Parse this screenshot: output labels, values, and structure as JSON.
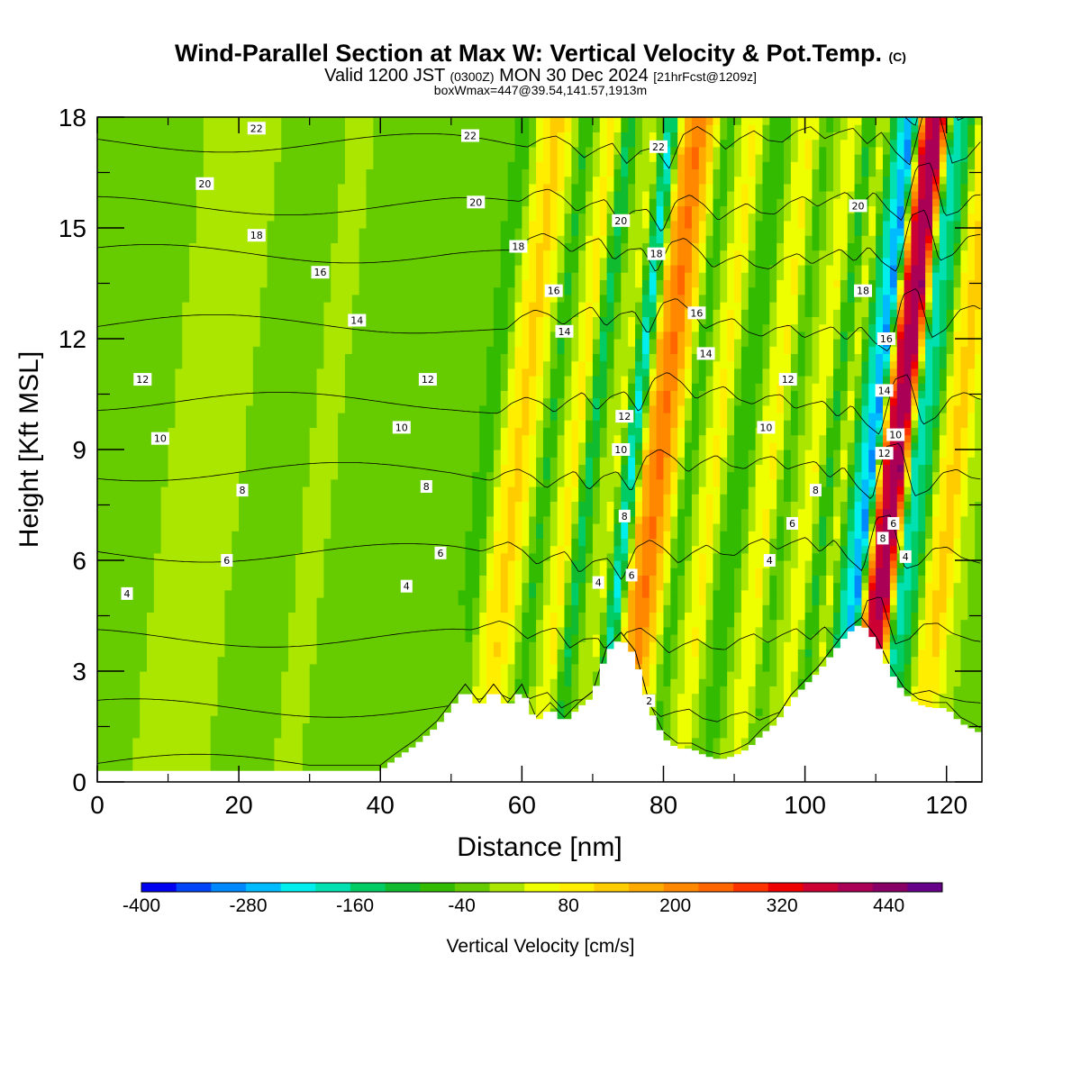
{
  "header": {
    "title": "Wind-Parallel Section at Max W: Vertical Velocity & Pot.Temp.",
    "title_mark": "(C)",
    "valid_prefix": "Valid 1200 JST",
    "valid_zulu": "(0300Z)",
    "valid_date": "MON 30 Dec 2024",
    "fcst": "[21hrFcst@1209z]",
    "boxwmax": "boxWmax=447@39.54,141.57,1913m"
  },
  "chart_data": {
    "type": "heatmap",
    "title": "Wind-Parallel Section at Max W: Vertical Velocity & Pot.Temp.",
    "xlabel": "Distance [nm]",
    "ylabel": "Height [Kft MSL]",
    "xlim": [
      0,
      125
    ],
    "ylim": [
      0,
      18
    ],
    "x_ticks": [
      "0",
      "20",
      "40",
      "60",
      "80",
      "100",
      "120"
    ],
    "y_ticks": [
      "0",
      "3",
      "6",
      "9",
      "12",
      "15",
      "18"
    ],
    "terrain": {
      "x": [
        0,
        40,
        42,
        45,
        48,
        52,
        54,
        56,
        58,
        60,
        62,
        64,
        66,
        68,
        70,
        72,
        74,
        76,
        78,
        80,
        82,
        84,
        86,
        88,
        90,
        92,
        94,
        96,
        98,
        100,
        102,
        104,
        106,
        108,
        110,
        112,
        114,
        116,
        118,
        120,
        122,
        125
      ],
      "y": [
        0.3,
        0.3,
        0.6,
        1.0,
        1.5,
        2.5,
        2.0,
        2.5,
        2.0,
        2.5,
        1.6,
        2.0,
        1.6,
        2.0,
        2.3,
        3.5,
        3.9,
        3.4,
        2.0,
        1.2,
        0.9,
        0.9,
        0.7,
        0.6,
        0.7,
        0.9,
        1.3,
        1.6,
        2.2,
        2.6,
        3.0,
        3.5,
        4.0,
        4.3,
        3.8,
        3.0,
        2.4,
        2.1,
        2.0,
        2.0,
        1.6,
        1.3
      ]
    },
    "vertical_velocity_field": {
      "description_units": "cm/s",
      "x": [
        0,
        5,
        10,
        15,
        20,
        25,
        30,
        35,
        40,
        45,
        50,
        54,
        56,
        58,
        60,
        62,
        64,
        66,
        68,
        70,
        72,
        74,
        76,
        78,
        80,
        82,
        84,
        86,
        88,
        90,
        92,
        94,
        96,
        98,
        100,
        102,
        104,
        106,
        108,
        110,
        112,
        114,
        116,
        118,
        120,
        122,
        125
      ],
      "w": [
        -30,
        -10,
        5,
        20,
        -5,
        -30,
        15,
        -20,
        -30,
        -25,
        -35,
        -45,
        80,
        140,
        60,
        -90,
        30,
        110,
        -140,
        10,
        50,
        -230,
        170,
        250,
        120,
        -80,
        30,
        100,
        -40,
        -80,
        40,
        90,
        -60,
        20,
        80,
        -100,
        60,
        -160,
        -300,
        380,
        440,
        -200,
        -120,
        100,
        140,
        30,
        -30
      ],
      "tilt_nm_per_kft": 0.6
    },
    "potential_temperature": {
      "units": "C",
      "levels": [
        2,
        4,
        6,
        8,
        10,
        12,
        14,
        16,
        18,
        20,
        22
      ],
      "base_height_kft": [
        0.5,
        2.0,
        3.9,
        6.2,
        8.4,
        10.3,
        12.4,
        14.3,
        15.6,
        17.3,
        18.6
      ],
      "labels": [
        {
          "text": "22",
          "x": 22.5,
          "y": 17.7
        },
        {
          "text": "22",
          "x": 52.7,
          "y": 17.5
        },
        {
          "text": "22",
          "x": 79.3,
          "y": 17.2
        },
        {
          "text": "20",
          "x": 15.2,
          "y": 16.2
        },
        {
          "text": "20",
          "x": 53.5,
          "y": 15.7
        },
        {
          "text": "20",
          "x": 74.0,
          "y": 15.2
        },
        {
          "text": "20",
          "x": 107.5,
          "y": 15.6
        },
        {
          "text": "18",
          "x": 22.5,
          "y": 14.8
        },
        {
          "text": "18",
          "x": 59.5,
          "y": 14.5
        },
        {
          "text": "18",
          "x": 79.0,
          "y": 14.3
        },
        {
          "text": "18",
          "x": 108.2,
          "y": 13.3
        },
        {
          "text": "16",
          "x": 31.5,
          "y": 13.8
        },
        {
          "text": "16",
          "x": 64.5,
          "y": 13.3
        },
        {
          "text": "16",
          "x": 84.7,
          "y": 12.7
        },
        {
          "text": "16",
          "x": 111.5,
          "y": 12.0
        },
        {
          "text": "14",
          "x": 36.7,
          "y": 12.5
        },
        {
          "text": "14",
          "x": 66.0,
          "y": 12.2
        },
        {
          "text": "14",
          "x": 86.0,
          "y": 11.6
        },
        {
          "text": "14",
          "x": 111.2,
          "y": 10.6
        },
        {
          "text": "12",
          "x": 6.4,
          "y": 10.9
        },
        {
          "text": "12",
          "x": 46.7,
          "y": 10.9
        },
        {
          "text": "12",
          "x": 74.5,
          "y": 9.9
        },
        {
          "text": "12",
          "x": 97.6,
          "y": 10.9
        },
        {
          "text": "12",
          "x": 111.2,
          "y": 8.9
        },
        {
          "text": "10",
          "x": 8.9,
          "y": 9.3
        },
        {
          "text": "10",
          "x": 43.0,
          "y": 9.6
        },
        {
          "text": "10",
          "x": 74.0,
          "y": 9.0
        },
        {
          "text": "10",
          "x": 94.5,
          "y": 9.6
        },
        {
          "text": "10",
          "x": 112.8,
          "y": 9.4
        },
        {
          "text": "8",
          "x": 20.5,
          "y": 7.9
        },
        {
          "text": "8",
          "x": 46.5,
          "y": 8.0
        },
        {
          "text": "8",
          "x": 74.5,
          "y": 7.2
        },
        {
          "text": "8",
          "x": 101.5,
          "y": 7.9
        },
        {
          "text": "8",
          "x": 111.0,
          "y": 6.6
        },
        {
          "text": "6",
          "x": 18.3,
          "y": 6.0
        },
        {
          "text": "6",
          "x": 48.5,
          "y": 6.2
        },
        {
          "text": "6",
          "x": 75.5,
          "y": 5.6
        },
        {
          "text": "6",
          "x": 98.2,
          "y": 7.0
        },
        {
          "text": "6",
          "x": 112.5,
          "y": 7.0
        },
        {
          "text": "4",
          "x": 4.2,
          "y": 5.1
        },
        {
          "text": "4",
          "x": 43.7,
          "y": 5.3
        },
        {
          "text": "4",
          "x": 70.8,
          "y": 5.4
        },
        {
          "text": "4",
          "x": 95.0,
          "y": 6.0
        },
        {
          "text": "4",
          "x": 114.2,
          "y": 6.1
        },
        {
          "text": "2",
          "x": 78.0,
          "y": 2.2
        }
      ]
    },
    "colorbar": {
      "title": "Vertical Velocity [cm/s]",
      "min": -400,
      "max": 500,
      "step": 40,
      "tick_labels": [
        "-400",
        "-280",
        "-160",
        "-40",
        "80",
        "200",
        "320",
        "440"
      ],
      "colors": [
        "#0000f0",
        "#0044f8",
        "#0088ff",
        "#00bbff",
        "#00eeee",
        "#00e0b0",
        "#00cc66",
        "#10bb30",
        "#33bb00",
        "#66cc00",
        "#aae600",
        "#eeff00",
        "#ffee00",
        "#ffcc00",
        "#ffaa00",
        "#ff8800",
        "#ff6600",
        "#ff3300",
        "#ee0000",
        "#cc0033",
        "#aa0055",
        "#880066",
        "#660088"
      ]
    }
  }
}
